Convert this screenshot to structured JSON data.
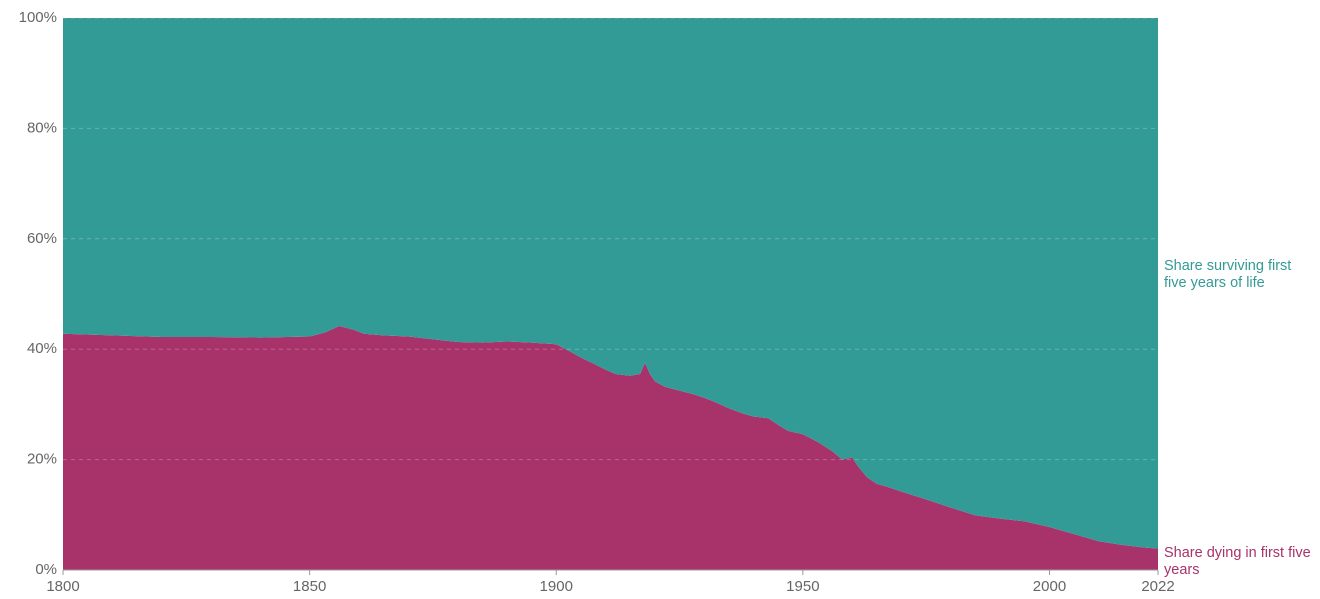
{
  "chart_data": {
    "type": "stacked-area",
    "x": [
      1800,
      1810,
      1820,
      1830,
      1840,
      1850,
      1853,
      1856,
      1859,
      1861,
      1865,
      1870,
      1875,
      1880,
      1885,
      1890,
      1895,
      1900,
      1903,
      1905,
      1908,
      1910,
      1912,
      1915,
      1917,
      1918,
      1919,
      1920,
      1922,
      1925,
      1928,
      1930,
      1932,
      1935,
      1938,
      1940,
      1943,
      1945,
      1947,
      1950,
      1953,
      1956,
      1958,
      1960,
      1961,
      1963,
      1965,
      1967,
      1970,
      1975,
      1980,
      1985,
      1990,
      1995,
      2000,
      2005,
      2010,
      2015,
      2020,
      2022
    ],
    "series": [
      {
        "name": "Share dying in first five years",
        "color": "#a8326a",
        "values": [
          42.8,
          42.5,
          42.2,
          42.2,
          42.1,
          42.3,
          43.0,
          44.2,
          43.5,
          42.8,
          42.5,
          42.3,
          41.8,
          41.3,
          41.2,
          41.4,
          41.2,
          40.9,
          39.5,
          38.5,
          37.2,
          36.3,
          35.5,
          35.2,
          35.5,
          37.5,
          35.5,
          34.2,
          33.2,
          32.5,
          31.8,
          31.2,
          30.5,
          29.3,
          28.3,
          27.8,
          27.5,
          26.3,
          25.2,
          24.6,
          23.2,
          21.5,
          20.0,
          20.4,
          19.0,
          16.8,
          15.6,
          15.1,
          14.2,
          12.8,
          11.3,
          9.9,
          9.3,
          8.8,
          7.8,
          6.5,
          5.2,
          4.5,
          4.0,
          3.9
        ]
      },
      {
        "name": "Share surviving first five years of life",
        "color": "#339b96",
        "values": [
          57.2,
          57.5,
          57.8,
          57.8,
          57.9,
          57.7,
          57.0,
          55.8,
          56.5,
          57.2,
          57.5,
          57.7,
          58.2,
          58.7,
          58.8,
          58.6,
          58.8,
          59.1,
          60.5,
          61.5,
          62.8,
          63.7,
          64.5,
          64.8,
          64.5,
          62.5,
          64.5,
          65.8,
          66.8,
          67.5,
          68.2,
          68.8,
          69.5,
          70.7,
          71.7,
          72.2,
          72.5,
          73.7,
          74.8,
          75.4,
          76.8,
          78.5,
          80.0,
          79.6,
          81.0,
          83.2,
          84.4,
          84.9,
          85.8,
          87.2,
          88.7,
          90.1,
          90.7,
          91.2,
          92.2,
          93.5,
          94.8,
          95.5,
          96.0,
          96.1
        ]
      }
    ],
    "xlim": [
      1800,
      2022
    ],
    "xticks": [
      1800,
      1850,
      1900,
      1950,
      2000,
      2022
    ],
    "ylim": [
      0,
      100
    ],
    "yticks": [
      {
        "value": 0,
        "label": "0%"
      },
      {
        "value": 20,
        "label": "20%"
      },
      {
        "value": 40,
        "label": "40%"
      },
      {
        "value": 60,
        "label": "60%"
      },
      {
        "value": 80,
        "label": "80%"
      },
      {
        "value": 100,
        "label": "100%"
      }
    ],
    "grid": true
  }
}
